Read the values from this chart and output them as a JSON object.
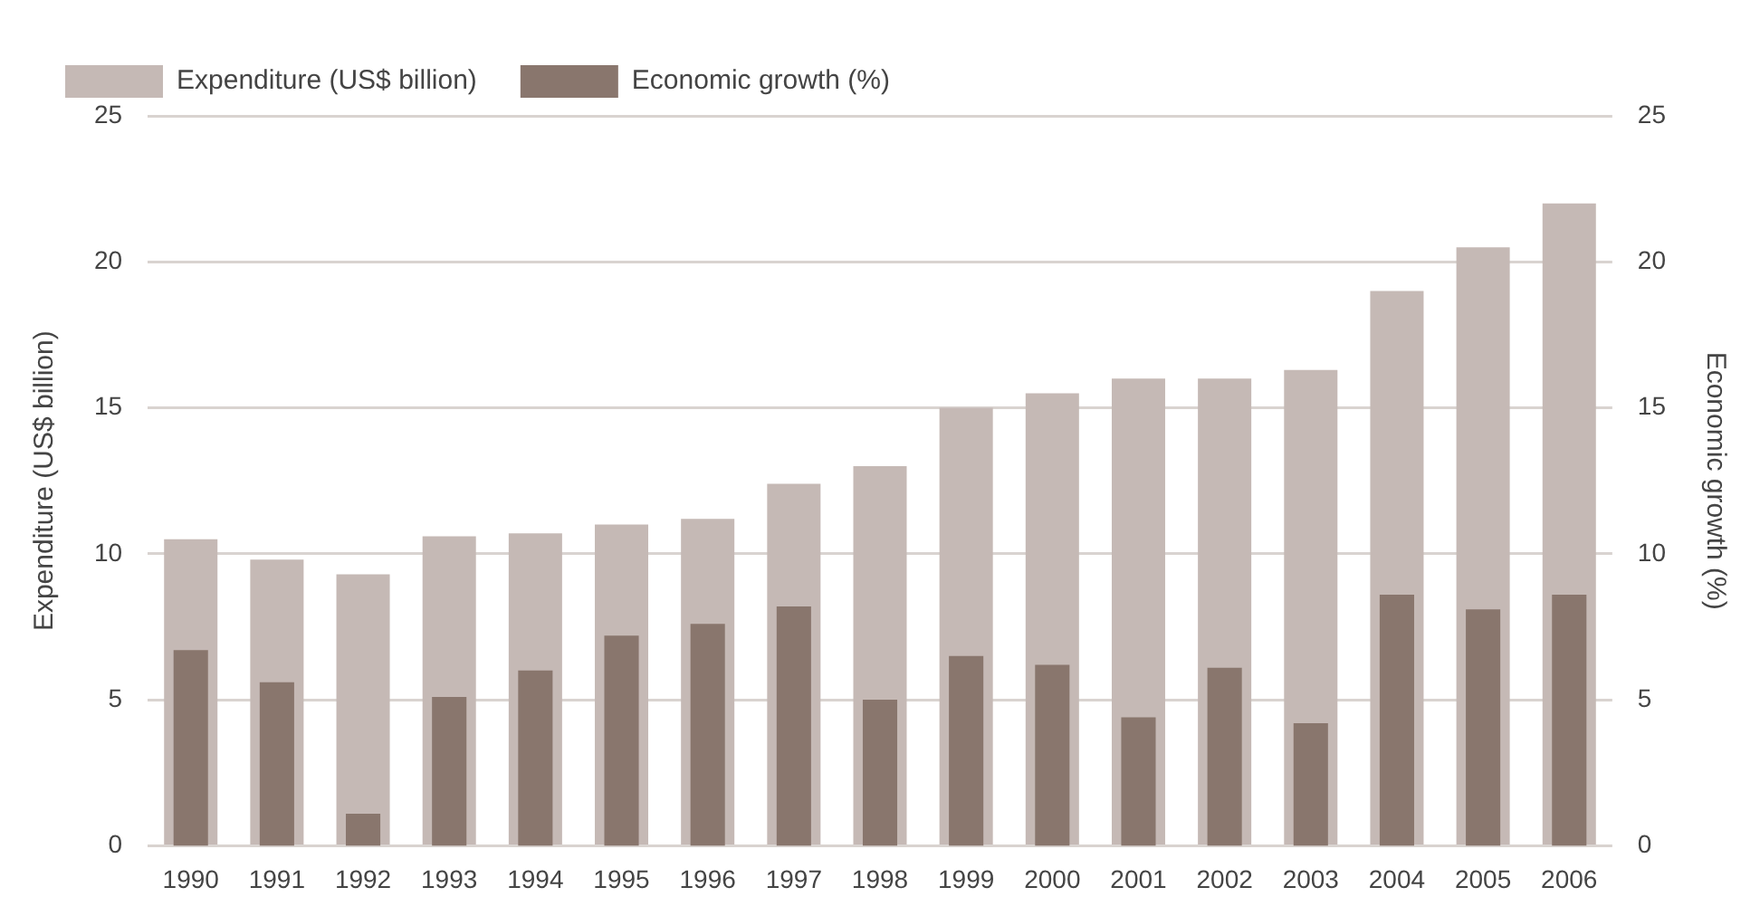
{
  "chart_data": {
    "type": "bar",
    "categories": [
      "1990",
      "1991",
      "1992",
      "1993",
      "1994",
      "1995",
      "1996",
      "1997",
      "1998",
      "1999",
      "2000",
      "2001",
      "2002",
      "2003",
      "2004",
      "2005",
      "2006"
    ],
    "series": [
      {
        "name": "Expenditure (US$ billion)",
        "color": "#c5b9b5",
        "values": [
          10.5,
          9.8,
          9.3,
          10.6,
          10.7,
          11.0,
          11.2,
          12.4,
          13.0,
          15.0,
          15.5,
          16.0,
          16.0,
          16.3,
          19.0,
          20.5,
          22.0
        ]
      },
      {
        "name": "Economic growth (%)",
        "color": "#89766d",
        "axis": "y2",
        "values": [
          6.7,
          5.6,
          1.1,
          5.1,
          6.0,
          7.2,
          7.6,
          8.2,
          5.0,
          6.5,
          6.2,
          4.4,
          6.1,
          4.2,
          8.6,
          8.1,
          8.6
        ]
      }
    ],
    "ylabel": "Expenditure (US$ billion)",
    "y2label": "Economic growth (%)",
    "ylim": [
      0,
      25
    ],
    "yticks": [
      0,
      5,
      10,
      15,
      20,
      25
    ],
    "y2lim": [
      0,
      25
    ],
    "y2ticks": [
      0,
      5,
      10,
      15,
      20,
      25
    ],
    "grid": "y",
    "legend": "top left"
  }
}
